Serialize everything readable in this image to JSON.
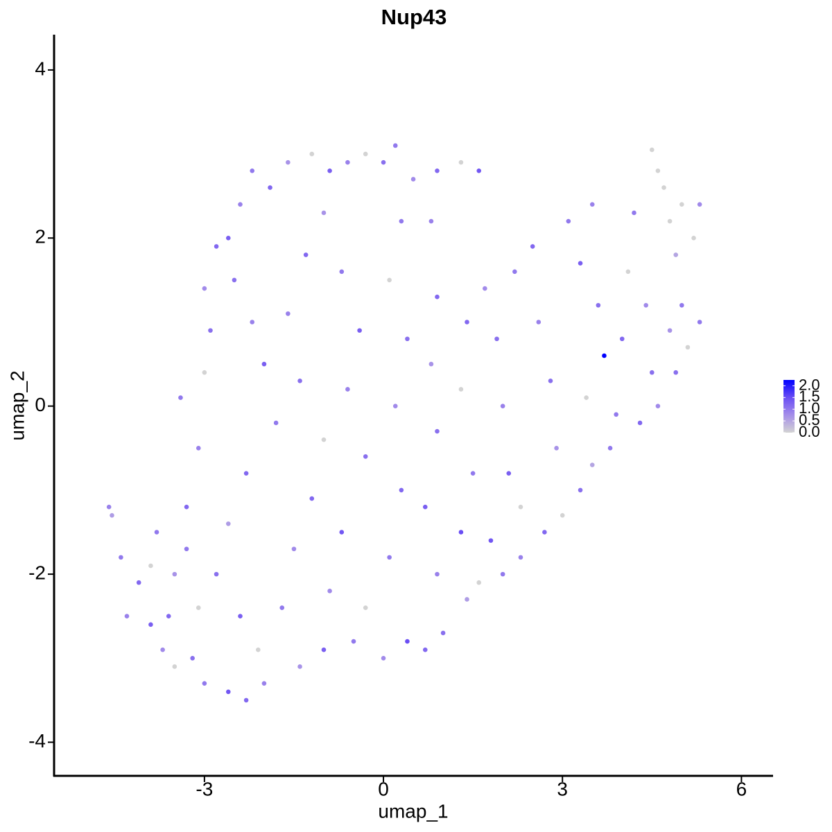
{
  "chart_data": {
    "type": "scatter",
    "title": "Nup43",
    "xlabel": "umap_1",
    "ylabel": "umap_2",
    "xlim": [
      -5.52,
      6.53
    ],
    "ylim": [
      -4.4,
      4.42
    ],
    "xticks": [
      -3,
      0,
      3,
      6
    ],
    "yticks": [
      -4,
      -2,
      0,
      2,
      4
    ],
    "colorbar": {
      "lim": [
        0,
        2.25
      ],
      "ticks": [
        {
          "value": 0,
          "label": "0.0"
        },
        {
          "value": 0.5,
          "label": "0.5"
        },
        {
          "value": 1,
          "label": "1.0"
        },
        {
          "value": 1.5,
          "label": "1.5"
        },
        {
          "value": 2,
          "label": "2.0"
        }
      ],
      "colors": [
        "#d3d3d3",
        "#a58ee9",
        "#6a4ef4",
        "#0000ff"
      ]
    },
    "x": [
      -4.6,
      -4.55,
      -4.4,
      -4.1,
      -3.9,
      -3.7,
      -3.5,
      -3.2,
      -3.0,
      -2.6,
      -2.3,
      -2.0,
      -1.4,
      -1.0,
      -0.5,
      0.0,
      0.4,
      0.7,
      1.0,
      1.4,
      1.6,
      2.0,
      2.3,
      2.7,
      3.0,
      3.3,
      3.5,
      3.8,
      4.3,
      4.6,
      4.9,
      5.1,
      5.3,
      -3.8,
      -3.5,
      -3.3,
      -3.1,
      -3.4,
      -3.0,
      -2.9,
      -3.0,
      -2.8,
      -2.6,
      -2.4,
      -2.2,
      -1.9,
      -1.6,
      -1.2,
      -0.9,
      -0.6,
      -0.3,
      0.0,
      0.2,
      0.5,
      0.9,
      1.3,
      1.6,
      -2.5,
      -2.2,
      -2.0,
      -1.8,
      -2.3,
      -2.6,
      -2.8,
      -2.4,
      -2.1,
      -1.7,
      -1.5,
      -1.2,
      -1.0,
      -1.4,
      -1.6,
      -1.3,
      -1.0,
      -0.7,
      -0.4,
      -0.6,
      -0.3,
      -0.7,
      -0.9,
      -0.3,
      0.1,
      0.3,
      0.2,
      0.4,
      0.1,
      0.3,
      0.8,
      0.9,
      0.8,
      0.9,
      0.7,
      0.9,
      1.3,
      1.5,
      1.3,
      1.4,
      1.7,
      1.9,
      2.0,
      2.1,
      2.3,
      1.8,
      2.2,
      2.5,
      2.6,
      2.8,
      2.9,
      3.1,
      3.3,
      3.5,
      3.6,
      3.7,
      3.4,
      3.9,
      4.0,
      4.1,
      4.2,
      4.4,
      4.5,
      4.6,
      4.5,
      4.7,
      4.8,
      4.9,
      5.0,
      5.2,
      5.3,
      5.0,
      4.8,
      -4.3,
      -3.9,
      -3.6,
      -3.1,
      -3.3
    ],
    "y": [
      -1.2,
      -1.3,
      -1.8,
      -2.1,
      -2.6,
      -2.9,
      -3.1,
      -3.0,
      -3.3,
      -3.4,
      -3.5,
      -3.3,
      -3.1,
      -2.9,
      -2.8,
      -3.0,
      -2.8,
      -2.9,
      -2.7,
      -2.3,
      -2.1,
      -2.0,
      -1.8,
      -1.5,
      -1.3,
      -1.0,
      -0.7,
      -0.5,
      -0.2,
      0.0,
      0.4,
      0.7,
      1.0,
      -1.5,
      -2.0,
      -1.2,
      -0.5,
      0.1,
      0.4,
      0.9,
      1.4,
      1.9,
      2.0,
      2.4,
      2.8,
      2.6,
      2.9,
      3.0,
      2.8,
      2.9,
      3.0,
      2.9,
      3.1,
      2.7,
      2.8,
      2.9,
      2.8,
      1.5,
      1.0,
      0.5,
      -0.2,
      -0.8,
      -1.4,
      -2.0,
      -2.5,
      -2.9,
      -2.4,
      -1.7,
      -1.1,
      -0.4,
      0.3,
      1.1,
      1.8,
      2.3,
      1.6,
      0.9,
      0.2,
      -0.6,
      -1.5,
      -2.2,
      -2.4,
      -1.8,
      -1.0,
      0.0,
      0.8,
      1.5,
      2.2,
      2.2,
      1.3,
      0.5,
      -0.3,
      -1.2,
      -2.0,
      -1.5,
      -0.8,
      0.2,
      1.0,
      1.4,
      0.8,
      0.0,
      -0.8,
      -1.2,
      -1.6,
      1.6,
      1.9,
      1.0,
      0.3,
      -0.5,
      2.2,
      1.7,
      2.4,
      1.2,
      0.6,
      0.1,
      -0.1,
      0.8,
      1.6,
      2.3,
      1.2,
      0.4,
      2.8,
      3.05,
      2.6,
      2.2,
      1.8,
      2.4,
      2.0,
      2.4,
      1.2,
      0.9,
      -2.5,
      -1.9,
      -2.5,
      -2.4,
      -1.7
    ],
    "expression": [
      0.9,
      0.6,
      1.0,
      1.2,
      1.3,
      0.8,
      0.0,
      1.1,
      1.0,
      1.4,
      1.2,
      0.9,
      0.7,
      1.3,
      1.0,
      0.8,
      1.5,
      1.2,
      1.1,
      0.6,
      0.0,
      1.0,
      0.9,
      1.2,
      0.0,
      1.1,
      0.5,
      1.0,
      1.2,
      0.8,
      1.1,
      0.0,
      1.0,
      1.0,
      0.7,
      1.2,
      0.9,
      1.0,
      0.0,
      1.1,
      0.8,
      1.2,
      1.3,
      0.9,
      1.0,
      1.2,
      0.7,
      0.0,
      1.3,
      0.9,
      0.0,
      1.1,
      1.0,
      0.8,
      1.2,
      0.0,
      1.4,
      1.1,
      0.9,
      1.3,
      1.0,
      1.2,
      0.6,
      1.1,
      1.3,
      0.0,
      1.0,
      0.8,
      1.2,
      0.0,
      1.1,
      0.9,
      1.2,
      0.7,
      1.0,
      1.3,
      0.9,
      1.1,
      1.4,
      0.8,
      0.0,
      1.0,
      1.2,
      0.8,
      1.1,
      0.0,
      1.0,
      0.9,
      1.2,
      0.7,
      1.1,
      1.3,
      0.9,
      1.5,
      1.0,
      0.0,
      1.2,
      0.8,
      1.1,
      0.9,
      1.3,
      0.0,
      1.4,
      1.0,
      1.2,
      0.9,
      1.1,
      0.7,
      1.0,
      1.3,
      0.9,
      1.1,
      2.25,
      0.0,
      1.0,
      1.2,
      0.0,
      1.0,
      0.8,
      1.1,
      0.0,
      0.0,
      0.0,
      0.0,
      0.5,
      0.0,
      0.0,
      0.8,
      1.0,
      0.7,
      0.9,
      0.0,
      1.2,
      0.0,
      1.0
    ]
  }
}
